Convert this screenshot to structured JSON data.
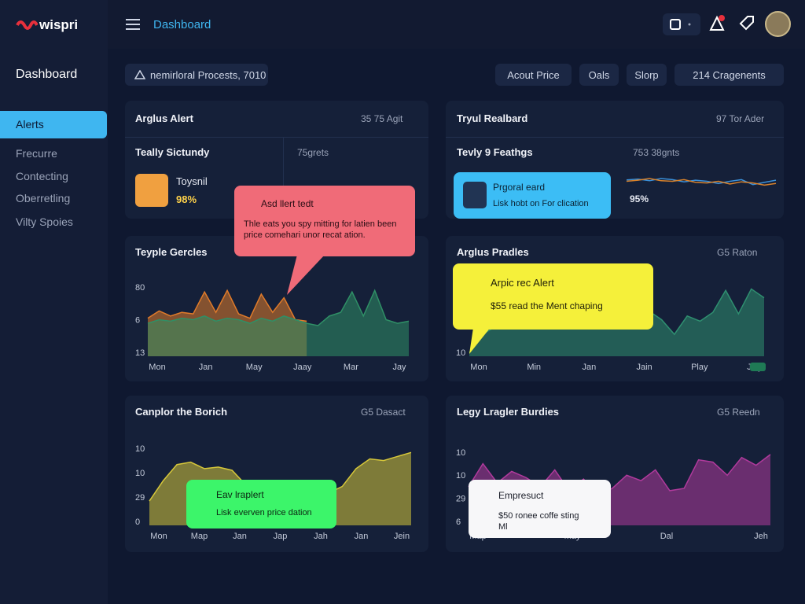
{
  "brand": "wispri",
  "topbar": {
    "title": "Dashboard"
  },
  "sidebar": {
    "heading": "Dashboard",
    "items": [
      "Alerts",
      "Frecurre",
      "Contecting",
      "Oberretling",
      "Vilty Spoies"
    ]
  },
  "toolbar": {
    "search": "nemirloral Procests, 7010",
    "buttons": [
      "Acout Price",
      "Oals",
      "Slorp",
      "214 Cragenents"
    ]
  },
  "panels": [
    {
      "title": "Arglus Alert",
      "meta": "35 75 Agit",
      "sub_left": "Teally Sictundy",
      "sub_right": "75grets",
      "person": "Toysnil",
      "percent": "98%"
    },
    {
      "title": "Tryul Realbard",
      "meta": "97 Tor Ader",
      "sub_left": "Tevly 9 Feathgs",
      "sub_right": "753 38gnts",
      "percent": "95%",
      "chart": {
        "type": "line",
        "ylim": [
          0,
          100
        ],
        "series": [
          {
            "color": "#3a8fd8",
            "values": [
              55,
              58,
              52,
              60,
              56,
              48,
              54,
              50,
              42,
              50,
              56,
              38,
              46,
              54
            ]
          },
          {
            "color": "#d9822b",
            "values": [
              50,
              54,
              60,
              52,
              50,
              56,
              46,
              44,
              50,
              40,
              48,
              44,
              36,
              42
            ]
          }
        ]
      }
    },
    {
      "title": "Teyple Gercles",
      "chart": {
        "type": "area",
        "ylim": [
          0,
          100
        ],
        "y_labels": [
          "80",
          "6",
          "13"
        ],
        "x_labels": [
          "Mon",
          "Jan",
          "May",
          "Jaay",
          "Mar",
          "Jay"
        ],
        "series": [
          {
            "color": "#e07b2a",
            "values": [
              52,
              62,
              55,
              60,
              58,
              88,
              60,
              90,
              58,
              52,
              85,
              60,
              80,
              50,
              48,
              null,
              null,
              null,
              null,
              null,
              null,
              null,
              null,
              null
            ]
          },
          {
            "color": "#2f8f66",
            "values": [
              45,
              50,
              48,
              52,
              50,
              55,
              48,
              52,
              50,
              45,
              52,
              48,
              55,
              50,
              45,
              42,
              55,
              60,
              88,
              55,
              90,
              50,
              45,
              48
            ]
          }
        ]
      }
    },
    {
      "title": "Arglus Pradles",
      "meta": "G5 Raton",
      "chart": {
        "type": "area",
        "ylim": [
          0,
          100
        ],
        "y_labels": [
          "10"
        ],
        "x_labels": [
          "Mon",
          "Min",
          "Jan",
          "Jain",
          "Play",
          "Jaly"
        ],
        "series": [
          {
            "color": "#2f8f70",
            "values": [
              5,
              30,
              40,
              38,
              45,
              50,
              42,
              55,
              48,
              52,
              60,
              50,
              55,
              45,
              62,
              50,
              30,
              55,
              48,
              60,
              90,
              58,
              92,
              80
            ]
          }
        ]
      }
    },
    {
      "title": "Canplor the Borich",
      "meta": "G5 Dasact",
      "chart": {
        "type": "area",
        "ylim": [
          0,
          100
        ],
        "y_labels": [
          "10",
          "10",
          "29",
          "0"
        ],
        "x_labels": [
          "Mon",
          "Map",
          "Jan",
          "Jap",
          "Jah",
          "Jan",
          "Jein"
        ],
        "series": [
          {
            "color": "#d6c73a",
            "values": [
              30,
              55,
              75,
              78,
              70,
              72,
              68,
              50,
              45,
              40,
              42,
              38,
              45,
              40,
              48,
              70,
              82,
              80,
              85,
              90
            ]
          }
        ]
      }
    },
    {
      "title": "Legy Lragler Burdies",
      "meta": "G5 Reedn",
      "chart": {
        "type": "area",
        "ylim": [
          0,
          100
        ],
        "y_labels": [
          "10",
          "10",
          "29",
          "6"
        ],
        "x_labels": [
          "Map",
          "May",
          "Dal",
          "Jeh"
        ],
        "series": [
          {
            "color": "#b03a9c",
            "values": [
              50,
              80,
              55,
              70,
              62,
              50,
              72,
              45,
              60,
              40,
              48,
              65,
              58,
              72,
              45,
              48,
              85,
              82,
              65,
              88,
              78,
              92
            ]
          }
        ]
      }
    }
  ],
  "popups": [
    {
      "title": "Asd llert tedt",
      "text": "Thle eats you spy mitting for latien been price comehari unor recat ation."
    },
    {
      "title": "Prgoral eard",
      "text": "Lisk hobt on For clication"
    },
    {
      "title": "Arpic rec Alert",
      "text": "$55 read the Ment chaping"
    },
    {
      "title": "Eav lraplert",
      "text": "Lisk everven price dation"
    },
    {
      "title": "Empresuct",
      "text": "$50 ronee coffe sting Ml"
    }
  ]
}
